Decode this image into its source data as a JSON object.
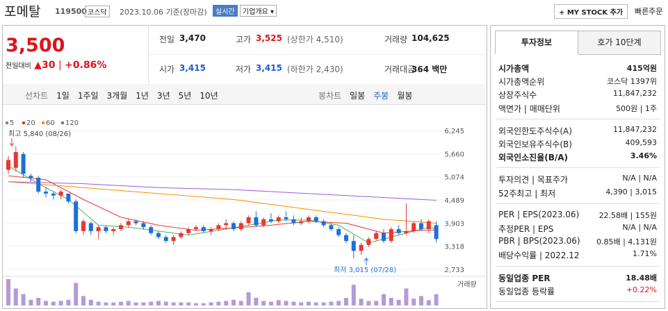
{
  "header": {
    "name": "포메탈",
    "code": "119500",
    "market": "코스닥",
    "date": "2023.10.06 기준(장마감)",
    "realtime": "실시간",
    "overview": "기업개요 ▾",
    "mystock": "+ MY STOCK 추가",
    "quick": "빠른주문"
  },
  "price": {
    "current": "3,500",
    "change_label": "전일대비",
    "change": "▲30",
    "rate": "+0.86%"
  },
  "quote": [
    [
      {
        "label": "전일",
        "value": "3,470"
      },
      {
        "label": "고가",
        "value": "3,525",
        "note": "(상한가 4,510)"
      },
      {
        "label": "거래량",
        "value": "104,625"
      }
    ],
    [
      {
        "label": "시가",
        "value": "3,415"
      },
      {
        "label": "저가",
        "value": "3,415",
        "note": "(하한가 2,430)"
      },
      {
        "label": "거래대금",
        "value": "364 백만"
      }
    ]
  ],
  "toolbar": {
    "line": [
      "선차트",
      "1일",
      "1주일",
      "3개월",
      "1년",
      "3년",
      "5년",
      "10년"
    ],
    "candle": [
      "봉차트",
      "일봉",
      "주봉",
      "월봉"
    ]
  },
  "chart_data": {
    "type": "candlestick",
    "legend": [
      {
        "name": "5",
        "color": "#4caf50"
      },
      {
        "name": "20",
        "color": "#e53935"
      },
      {
        "name": "60",
        "color": "#fb8c00"
      },
      {
        "name": "120",
        "color": "#9c5bd6"
      }
    ],
    "ylim": [
      2733,
      6245
    ],
    "yticks": [
      {
        "value": 2733,
        "label": "2,733"
      },
      {
        "value": 3318,
        "label": "3,318"
      },
      {
        "value": 3903,
        "label": "3,903"
      },
      {
        "value": 4489,
        "label": "4,489"
      },
      {
        "value": 5074,
        "label": "5,074"
      },
      {
        "value": 5660,
        "label": "5,660"
      },
      {
        "value": 6245,
        "label": "6,245"
      }
    ],
    "high_note": "최고 5,840 (08/26)",
    "low_note": "최저 3,015 (07/28)",
    "volume_label": "거래량",
    "candles": [
      {
        "o": 5250,
        "h": 5600,
        "l": 5150,
        "c": 5500
      },
      {
        "o": 5300,
        "h": 5840,
        "l": 5200,
        "c": 5700
      },
      {
        "o": 5650,
        "h": 5700,
        "l": 5050,
        "c": 5150
      },
      {
        "o": 5100,
        "h": 5150,
        "l": 4950,
        "c": 5050
      },
      {
        "o": 5050,
        "h": 5100,
        "l": 4650,
        "c": 4700
      },
      {
        "o": 4700,
        "h": 4800,
        "l": 4550,
        "c": 4650
      },
      {
        "o": 4650,
        "h": 4700,
        "l": 4500,
        "c": 4600
      },
      {
        "o": 4600,
        "h": 4750,
        "l": 4500,
        "c": 4700
      },
      {
        "o": 4650,
        "h": 4650,
        "l": 4400,
        "c": 4450
      },
      {
        "o": 4450,
        "h": 4500,
        "l": 3650,
        "c": 3700
      },
      {
        "o": 3700,
        "h": 4000,
        "l": 3600,
        "c": 3950
      },
      {
        "o": 3900,
        "h": 3950,
        "l": 3600,
        "c": 3700
      },
      {
        "o": 3700,
        "h": 3850,
        "l": 3500,
        "c": 3800
      },
      {
        "o": 3800,
        "h": 3850,
        "l": 3650,
        "c": 3700
      },
      {
        "o": 3700,
        "h": 3800,
        "l": 3600,
        "c": 3750
      },
      {
        "o": 3750,
        "h": 3900,
        "l": 3700,
        "c": 3850
      },
      {
        "o": 3850,
        "h": 4000,
        "l": 3800,
        "c": 3950
      },
      {
        "o": 3950,
        "h": 4000,
        "l": 3850,
        "c": 3900
      },
      {
        "o": 3900,
        "h": 3950,
        "l": 3750,
        "c": 3800
      },
      {
        "o": 3800,
        "h": 3850,
        "l": 3600,
        "c": 3650
      },
      {
        "o": 3650,
        "h": 3700,
        "l": 3500,
        "c": 3550
      },
      {
        "o": 3550,
        "h": 3600,
        "l": 3400,
        "c": 3450
      },
      {
        "o": 3450,
        "h": 3600,
        "l": 3350,
        "c": 3550
      },
      {
        "o": 3550,
        "h": 3700,
        "l": 3500,
        "c": 3650
      },
      {
        "o": 3650,
        "h": 3800,
        "l": 3600,
        "c": 3750
      },
      {
        "o": 3750,
        "h": 3850,
        "l": 3700,
        "c": 3800
      },
      {
        "o": 3800,
        "h": 3850,
        "l": 3650,
        "c": 3700
      },
      {
        "o": 3700,
        "h": 3800,
        "l": 3600,
        "c": 3750
      },
      {
        "o": 3750,
        "h": 3900,
        "l": 3700,
        "c": 3850
      },
      {
        "o": 3850,
        "h": 4000,
        "l": 3750,
        "c": 3900
      },
      {
        "o": 3900,
        "h": 3950,
        "l": 3700,
        "c": 3750
      },
      {
        "o": 3750,
        "h": 3950,
        "l": 3700,
        "c": 3900
      },
      {
        "o": 3900,
        "h": 4100,
        "l": 3850,
        "c": 4050
      },
      {
        "o": 4050,
        "h": 4200,
        "l": 3800,
        "c": 3850
      },
      {
        "o": 3850,
        "h": 4050,
        "l": 3800,
        "c": 4000
      },
      {
        "o": 4000,
        "h": 4150,
        "l": 3900,
        "c": 3950
      },
      {
        "o": 3950,
        "h": 4100,
        "l": 3900,
        "c": 4050
      },
      {
        "o": 4050,
        "h": 4200,
        "l": 3950,
        "c": 4000
      },
      {
        "o": 4000,
        "h": 4100,
        "l": 3850,
        "c": 3900
      },
      {
        "o": 3900,
        "h": 4050,
        "l": 3850,
        "c": 3950
      },
      {
        "o": 3950,
        "h": 4100,
        "l": 3900,
        "c": 4050
      },
      {
        "o": 4050,
        "h": 4100,
        "l": 3900,
        "c": 3950
      },
      {
        "o": 3950,
        "h": 4000,
        "l": 3800,
        "c": 3850
      },
      {
        "o": 3850,
        "h": 3900,
        "l": 3700,
        "c": 3750
      },
      {
        "o": 3750,
        "h": 3800,
        "l": 3550,
        "c": 3600
      },
      {
        "o": 3600,
        "h": 3650,
        "l": 3400,
        "c": 3450
      },
      {
        "o": 3450,
        "h": 3600,
        "l": 3015,
        "c": 3200
      },
      {
        "o": 3200,
        "h": 3400,
        "l": 3100,
        "c": 3350
      },
      {
        "o": 3350,
        "h": 3550,
        "l": 3300,
        "c": 3500
      },
      {
        "o": 3500,
        "h": 3700,
        "l": 3450,
        "c": 3650
      },
      {
        "o": 3650,
        "h": 3750,
        "l": 3400,
        "c": 3450
      },
      {
        "o": 3450,
        "h": 3800,
        "l": 3400,
        "c": 3750
      },
      {
        "o": 3750,
        "h": 3850,
        "l": 3600,
        "c": 3650
      },
      {
        "o": 3650,
        "h": 4400,
        "l": 3600,
        "c": 3700
      },
      {
        "o": 3700,
        "h": 3950,
        "l": 3650,
        "c": 3900
      },
      {
        "o": 3900,
        "h": 4000,
        "l": 3700,
        "c": 3750
      },
      {
        "o": 3750,
        "h": 4000,
        "l": 3650,
        "c": 3950
      },
      {
        "o": 3850,
        "h": 3950,
        "l": 3415,
        "c": 3500
      }
    ],
    "volume": [
      70,
      45,
      30,
      15,
      20,
      12,
      10,
      12,
      15,
      60,
      25,
      15,
      10,
      8,
      8,
      10,
      12,
      8,
      8,
      10,
      12,
      10,
      8,
      8,
      8,
      6,
      6,
      8,
      10,
      12,
      15,
      12,
      35,
      20,
      12,
      10,
      14,
      12,
      10,
      8,
      10,
      8,
      8,
      10,
      12,
      20,
      55,
      18,
      12,
      12,
      30,
      20,
      15,
      45,
      18,
      25,
      14,
      30
    ],
    "ma": [
      {
        "points": [
          [
            0,
            5350
          ],
          [
            4,
            4900
          ],
          [
            8,
            4500
          ],
          [
            12,
            3850
          ],
          [
            16,
            3800
          ],
          [
            20,
            3700
          ],
          [
            24,
            3600
          ],
          [
            28,
            3720
          ],
          [
            32,
            3850
          ],
          [
            36,
            3980
          ],
          [
            40,
            3980
          ],
          [
            44,
            3850
          ],
          [
            48,
            3400
          ],
          [
            52,
            3600
          ],
          [
            56,
            3800
          ],
          [
            57,
            3750
          ]
        ]
      },
      {
        "points": [
          [
            0,
            5100
          ],
          [
            5,
            5000
          ],
          [
            10,
            4500
          ],
          [
            15,
            4050
          ],
          [
            20,
            3850
          ],
          [
            25,
            3720
          ],
          [
            30,
            3780
          ],
          [
            35,
            3850
          ],
          [
            40,
            3950
          ],
          [
            45,
            3900
          ],
          [
            50,
            3650
          ],
          [
            55,
            3720
          ],
          [
            57,
            3730
          ]
        ]
      },
      {
        "points": [
          [
            0,
            4950
          ],
          [
            10,
            4800
          ],
          [
            20,
            4650
          ],
          [
            30,
            4500
          ],
          [
            40,
            4250
          ],
          [
            50,
            4000
          ],
          [
            57,
            3900
          ]
        ]
      },
      {
        "points": [
          [
            0,
            4950
          ],
          [
            10,
            4900
          ],
          [
            20,
            4800
          ],
          [
            30,
            4750
          ],
          [
            40,
            4650
          ],
          [
            50,
            4550
          ],
          [
            57,
            4480
          ]
        ]
      }
    ]
  },
  "invest": {
    "tabs": [
      "투자정보",
      "호가 10단계"
    ],
    "sections": [
      [
        {
          "label": "시가총액",
          "value": "415억원",
          "bold": true
        },
        {
          "label": "시가총액순위",
          "value": "코스닥 1397위"
        },
        {
          "label": "상장주식수",
          "value": "11,847,232"
        },
        {
          "label": "액면가 | 매매단위",
          "value": "500원 | 1주"
        }
      ],
      [
        {
          "label": "외국인한도주식수(A)",
          "value": "11,847,232"
        },
        {
          "label": "외국인보유주식수(B)",
          "value": "409,593"
        },
        {
          "label": "외국인소진율(B/A)",
          "value": "3.46%",
          "bold": true
        }
      ],
      [
        {
          "label": "투자의견 | 목표주가",
          "value": "N/A | N/A"
        },
        {
          "label": "52주최고 | 최저",
          "value": "4,390 | 3,015"
        }
      ],
      [
        {
          "label": "PER | EPS(2023.06)",
          "value": "22.58배 | 155원"
        },
        {
          "label": "추정PER | EPS",
          "value": "N/A | N/A"
        },
        {
          "label": "PBR | BPS(2023.06)",
          "value": "0.85배 | 4,131원"
        },
        {
          "label": "배당수익률 | 2022.12",
          "value": "1.71%"
        }
      ],
      [
        {
          "label": "동일업종 PER",
          "value": "18.48배",
          "bold": true
        },
        {
          "label": "동일업종 등락률",
          "value": "+0.22%",
          "red": true
        }
      ]
    ]
  }
}
